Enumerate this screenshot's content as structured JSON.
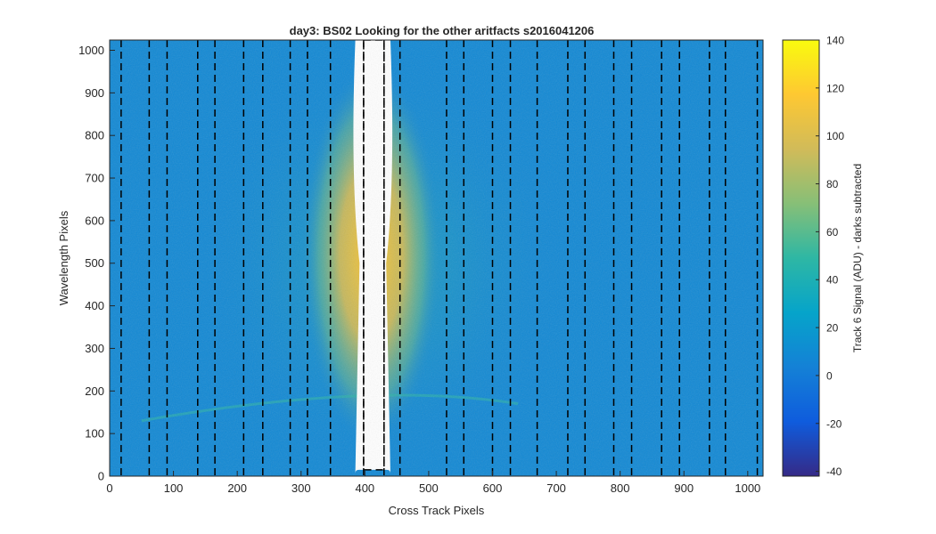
{
  "chart_data": {
    "type": "heatmap",
    "title": "day3: BS02  Looking for the other aritfacts  s2016041206",
    "xlabel": "Cross Track Pixels",
    "ylabel": "Wavelength Pixels",
    "colorbar_label": "Track 6 Signal (ADU) - darks subtracted",
    "xlim": [
      0,
      1024
    ],
    "ylim": [
      0,
      1024
    ],
    "clim": [
      -42,
      140
    ],
    "x_ticks": [
      0,
      100,
      200,
      300,
      400,
      500,
      600,
      700,
      800,
      900,
      1000
    ],
    "y_ticks": [
      0,
      100,
      200,
      300,
      400,
      500,
      600,
      700,
      800,
      900,
      1000
    ],
    "colorbar_ticks": [
      -40,
      -20,
      0,
      20,
      40,
      60,
      80,
      100,
      120,
      140
    ],
    "colormap": "parula",
    "colormap_stops": [
      "#352a87",
      "#0f5cdd",
      "#1481d6",
      "#06a4ca",
      "#2eb7a4",
      "#87bf77",
      "#d1bb59",
      "#fec832",
      "#f9fb0e"
    ],
    "background_level": 8,
    "features": [
      {
        "name": "saturated central track",
        "x_range": [
          385,
          440
        ],
        "y_range": [
          15,
          1024
        ],
        "level": "saturated (white)"
      },
      {
        "name": "bright halo",
        "x_range": [
          300,
          520
        ],
        "y_center": 520,
        "peak_level": 130
      },
      {
        "name": "faint ring arc",
        "y": 190,
        "level": 40
      }
    ],
    "dashed_lines": {
      "color": "#000000",
      "x": [
        18,
        62,
        90,
        138,
        165,
        210,
        240,
        283,
        310,
        346,
        398,
        430,
        455,
        528,
        555,
        600,
        628,
        670,
        718,
        745,
        790,
        818,
        865,
        893,
        940,
        965,
        1015
      ]
    },
    "dashed_box": {
      "x_range": [
        398,
        430
      ],
      "y_range": [
        15,
        1024
      ]
    }
  }
}
